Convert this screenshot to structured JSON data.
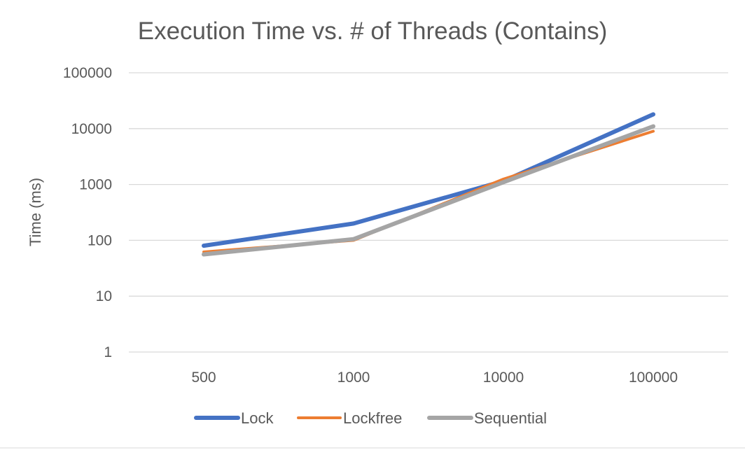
{
  "chart_data": {
    "type": "line",
    "title": "Execution Time vs. # of Threads (Contains)",
    "xlabel": "",
    "ylabel": "Time (ms)",
    "y_scale": "log",
    "ylim": [
      1,
      100000
    ],
    "y_ticks": [
      1,
      10,
      100,
      1000,
      10000,
      100000
    ],
    "y_tick_labels": [
      "1",
      "10",
      "100",
      "1000",
      "10000",
      "100000"
    ],
    "categories": [
      "500",
      "1000",
      "10000",
      "100000"
    ],
    "grid": true,
    "legend_position": "bottom",
    "series": [
      {
        "name": "Lock",
        "color": "#4472c4",
        "values": [
          80,
          200,
          1150,
          18000
        ]
      },
      {
        "name": "Lockfree",
        "color": "#ed7d31",
        "values": [
          62,
          100,
          1250,
          9000
        ]
      },
      {
        "name": "Sequential",
        "color": "#a5a5a5",
        "values": [
          56,
          105,
          1100,
          11000
        ]
      }
    ]
  }
}
